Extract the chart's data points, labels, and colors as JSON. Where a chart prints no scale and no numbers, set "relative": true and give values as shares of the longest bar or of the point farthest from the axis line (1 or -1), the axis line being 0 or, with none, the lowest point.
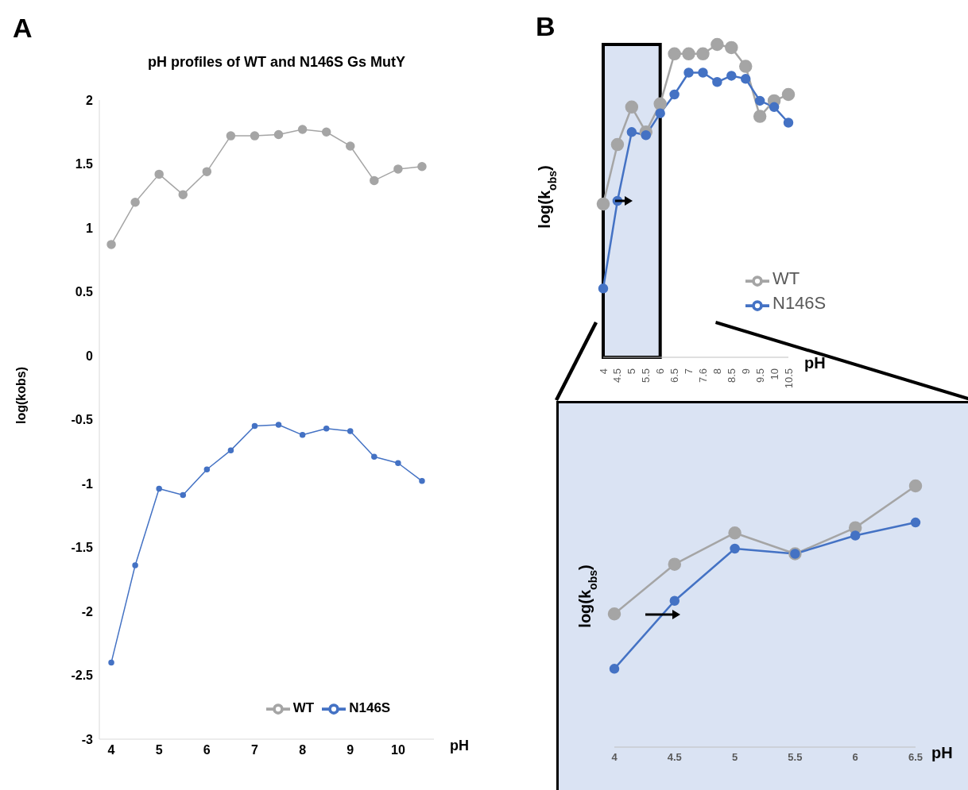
{
  "chart_data": [
    {
      "type": "line",
      "title": "pH profiles of WT and N146S Gs MutY",
      "xlabel": "pH",
      "ylabel": "log(kobs)",
      "annotations": [
        "A"
      ],
      "x": [
        4,
        4.5,
        5,
        5.5,
        6,
        6.5,
        7,
        7.5,
        8,
        8.5,
        9,
        9.5,
        10,
        10.5
      ],
      "series": [
        {
          "name": "WT",
          "color": "#a5a5a5",
          "values": [
            0.87,
            1.2,
            1.42,
            1.26,
            1.44,
            1.72,
            1.72,
            1.73,
            1.77,
            1.75,
            1.64,
            1.37,
            1.46,
            1.48
          ]
        },
        {
          "name": "N146S",
          "color": "#4472c4",
          "values": [
            -2.4,
            -1.64,
            -1.04,
            -1.09,
            -0.89,
            -0.74,
            -0.55,
            -0.54,
            -0.62,
            -0.57,
            -0.59,
            -0.79,
            -0.84,
            -0.98
          ]
        }
      ],
      "xlim": [
        3.75,
        10.75
      ],
      "xticks": [
        4,
        5,
        6,
        7,
        8,
        9,
        10
      ],
      "ylim": [
        -3,
        2
      ],
      "yticks": [
        -3,
        -2.5,
        -2,
        -1.5,
        -1,
        -0.5,
        0,
        0.5,
        1,
        1.5,
        2
      ],
      "grid": false,
      "legend": "bottom",
      "marker": "circle"
    },
    {
      "type": "line",
      "xlabel": "pH",
      "ylabel": "log(k$_{obs}$)",
      "annotations": [
        "B"
      ],
      "relative": true,
      "categories": [
        "4",
        "4.5",
        "5",
        "5.5",
        "6",
        "6.5",
        "7",
        "7.6",
        "8",
        "8.5",
        "9",
        "9.5",
        "10",
        "10.5"
      ],
      "series": [
        {
          "name": "WT",
          "color": "#a5a5a5",
          "values": [
            0.49,
            0.68,
            0.8,
            0.72,
            0.81,
            0.97,
            0.97,
            0.97,
            1,
            0.99,
            0.93,
            0.77,
            0.82,
            0.84
          ]
        },
        {
          "name": "N146S",
          "color": "#4472c4",
          "values": [
            0.22,
            0.5,
            0.72,
            0.71,
            0.78,
            0.84,
            0.91,
            0.91,
            0.88,
            0.9,
            0.89,
            0.82,
            0.8,
            0.75
          ]
        }
      ],
      "bands": [
        {
          "axis": "x",
          "from": "4",
          "to": "6",
          "color": "#dae3f3"
        }
      ],
      "grid": false,
      "legend": "bottom right",
      "marker": "circle"
    },
    {
      "type": "line",
      "xlabel": "pH",
      "ylabel": "log(k$_{obs}$)",
      "relative": true,
      "categories": [
        "4",
        "4.5",
        "5",
        "5.5",
        "6",
        "6.5"
      ],
      "series": [
        {
          "color": "#a5a5a5",
          "values": [
            0.51,
            0.7,
            0.82,
            0.74,
            0.84,
            1
          ]
        },
        {
          "color": "#4472c4",
          "values": [
            0.3,
            0.56,
            0.76,
            0.74,
            0.81,
            0.86
          ]
        }
      ],
      "grid": false,
      "legend": false,
      "marker": "circle"
    }
  ]
}
